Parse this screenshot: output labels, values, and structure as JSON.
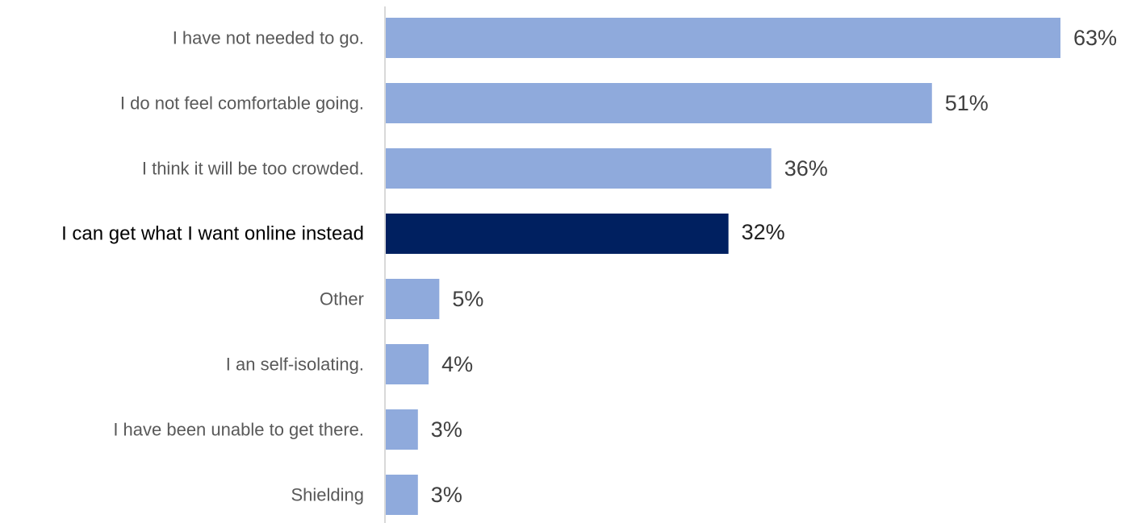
{
  "chart_data": {
    "type": "bar",
    "orientation": "horizontal",
    "categories": [
      "I have not needed to go.",
      "I do not feel comfortable going.",
      "I think it will be too crowded.",
      "I can get what I want online instead",
      "Other",
      "I an self-isolating.",
      "I have been unable to get there.",
      "Shielding"
    ],
    "values": [
      63,
      51,
      36,
      32,
      5,
      4,
      3,
      3
    ],
    "value_labels": [
      "63%",
      "51%",
      "36%",
      "32%",
      "5%",
      "4%",
      "3%",
      "3%"
    ],
    "highlight_index": 3,
    "xlim": [
      0,
      63
    ],
    "grid": false,
    "legend": "none",
    "colors": {
      "bar": "#8faadc",
      "highlight_bar": "#002060",
      "axis": "#d9d9d9"
    }
  }
}
